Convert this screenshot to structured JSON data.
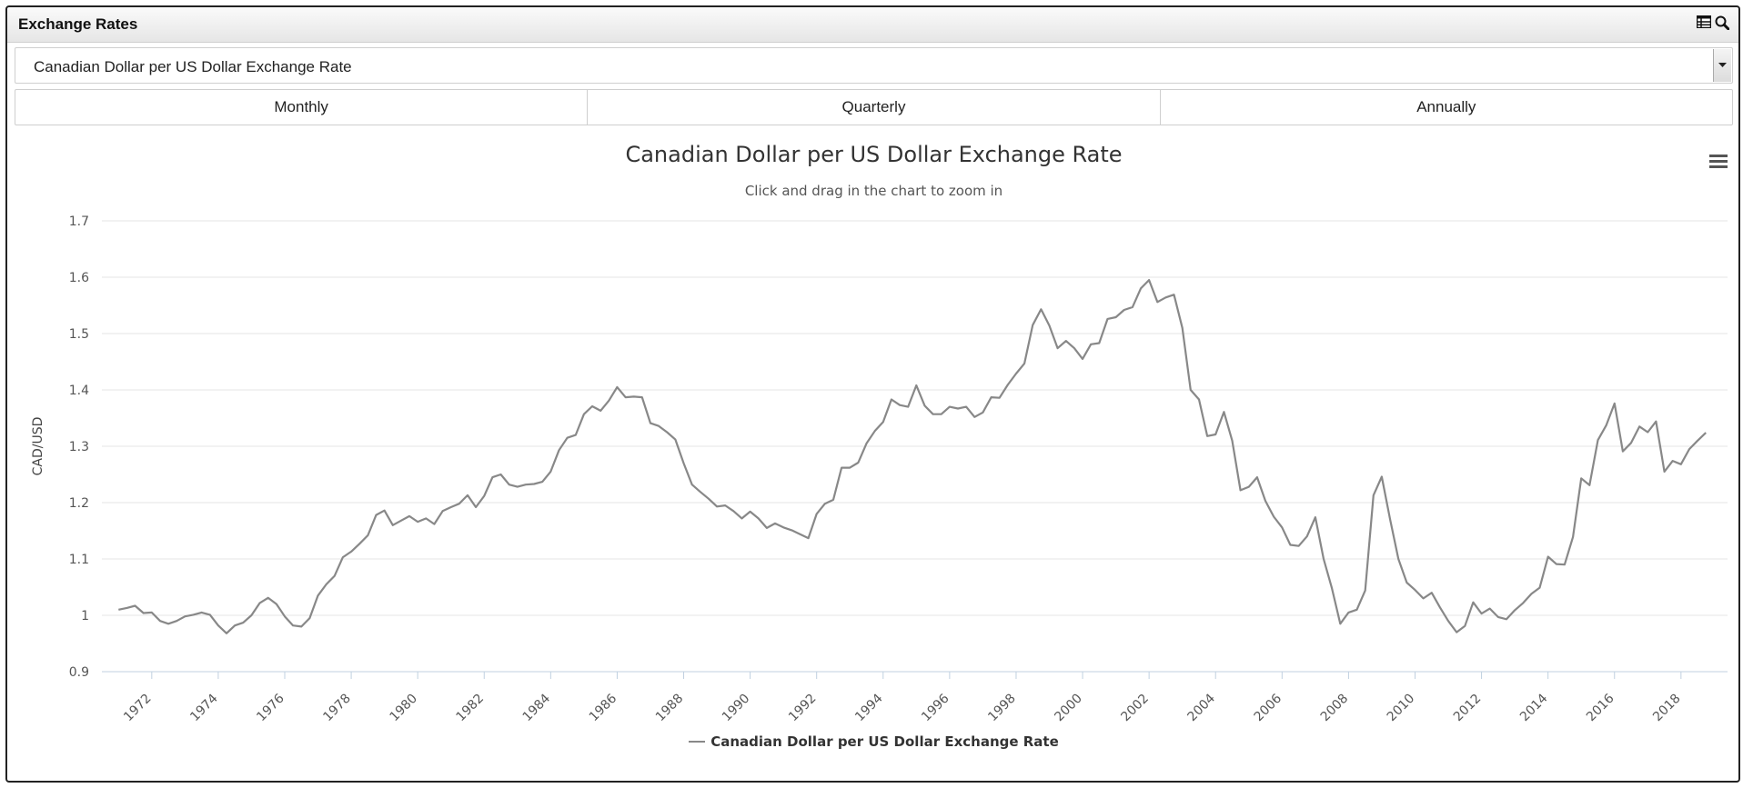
{
  "panel": {
    "title": "Exchange Rates",
    "icons": [
      "table-icon",
      "zoom-icon"
    ]
  },
  "selector": {
    "value": "Canadian Dollar per US Dollar Exchange Rate"
  },
  "frequency": {
    "buttons": [
      "Monthly",
      "Quarterly",
      "Annually"
    ]
  },
  "chart_data": {
    "type": "line",
    "title": "Canadian Dollar per US Dollar Exchange Rate",
    "subtitle": "Click and drag in the chart to zoom in",
    "xlabel": "",
    "ylabel": "CAD/USD",
    "ylim": [
      0.9,
      1.7
    ],
    "xlim": [
      1971.0,
      2018.9
    ],
    "yticks": [
      0.9,
      1,
      1.1,
      1.2,
      1.3,
      1.4,
      1.5,
      1.6,
      1.7
    ],
    "ytick_labels": [
      "0.9",
      "1",
      "1.1",
      "1.2",
      "1.3",
      "1.4",
      "1.5",
      "1.6",
      "1.7"
    ],
    "xticks": [
      1972,
      1974,
      1976,
      1978,
      1980,
      1982,
      1984,
      1986,
      1988,
      1990,
      1992,
      1994,
      1996,
      1998,
      2000,
      2002,
      2004,
      2006,
      2008,
      2010,
      2012,
      2014,
      2016,
      2018
    ],
    "xtick_labels": [
      "1972",
      "1974",
      "1976",
      "1978",
      "1980",
      "1982",
      "1984",
      "1986",
      "1988",
      "1990",
      "1992",
      "1994",
      "1996",
      "1998",
      "2000",
      "2002",
      "2004",
      "2006",
      "2008",
      "2010",
      "2012",
      "2014",
      "2016",
      "2018"
    ],
    "grid": true,
    "legend_position": "bottom-center",
    "series": [
      {
        "name": "Canadian Dollar per US Dollar Exchange Rate",
        "color": "#888888",
        "x": [
          1971.0,
          1971.25,
          1971.5,
          1971.75,
          1972.0,
          1972.25,
          1972.5,
          1972.75,
          1973.0,
          1973.25,
          1973.5,
          1973.75,
          1974.0,
          1974.25,
          1974.5,
          1974.75,
          1975.0,
          1975.25,
          1975.5,
          1975.75,
          1976.0,
          1976.25,
          1976.5,
          1976.75,
          1977.0,
          1977.25,
          1977.5,
          1977.75,
          1978.0,
          1978.25,
          1978.5,
          1978.75,
          1979.0,
          1979.25,
          1979.5,
          1979.75,
          1980.0,
          1980.25,
          1980.5,
          1980.75,
          1981.0,
          1981.25,
          1981.5,
          1981.75,
          1982.0,
          1982.25,
          1982.5,
          1982.75,
          1983.0,
          1983.25,
          1983.5,
          1983.75,
          1984.0,
          1984.25,
          1984.5,
          1984.75,
          1985.0,
          1985.25,
          1985.5,
          1985.75,
          1986.0,
          1986.25,
          1986.5,
          1986.75,
          1987.0,
          1987.25,
          1987.5,
          1987.75,
          1988.0,
          1988.25,
          1988.5,
          1988.75,
          1989.0,
          1989.25,
          1989.5,
          1989.75,
          1990.0,
          1990.25,
          1990.5,
          1990.75,
          1991.0,
          1991.25,
          1991.5,
          1991.75,
          1992.0,
          1992.25,
          1992.5,
          1992.75,
          1993.0,
          1993.25,
          1993.5,
          1993.75,
          1994.0,
          1994.25,
          1994.5,
          1994.75,
          1995.0,
          1995.25,
          1995.5,
          1995.75,
          1996.0,
          1996.25,
          1996.5,
          1996.75,
          1997.0,
          1997.25,
          1997.5,
          1997.75,
          1998.0,
          1998.25,
          1998.5,
          1998.75,
          1999.0,
          1999.25,
          1999.5,
          1999.75,
          2000.0,
          2000.25,
          2000.5,
          2000.75,
          2001.0,
          2001.25,
          2001.5,
          2001.75,
          2002.0,
          2002.25,
          2002.5,
          2002.75,
          2003.0,
          2003.25,
          2003.5,
          2003.75,
          2004.0,
          2004.25,
          2004.5,
          2004.75,
          2005.0,
          2005.25,
          2005.5,
          2005.75,
          2006.0,
          2006.25,
          2006.5,
          2006.75,
          2007.0,
          2007.25,
          2007.5,
          2007.75,
          2008.0,
          2008.25,
          2008.5,
          2008.75,
          2009.0,
          2009.25,
          2009.5,
          2009.75,
          2010.0,
          2010.25,
          2010.5,
          2010.75,
          2011.0,
          2011.25,
          2011.5,
          2011.75,
          2012.0,
          2012.25,
          2012.5,
          2012.75,
          2013.0,
          2013.25,
          2013.5,
          2013.75,
          2014.0,
          2014.25,
          2014.5,
          2014.75,
          2015.0,
          2015.25,
          2015.5,
          2015.75,
          2016.0,
          2016.25,
          2016.5,
          2016.75,
          2017.0,
          2017.25,
          2017.5,
          2017.75,
          2018.0,
          2018.25,
          2018.5,
          2018.75
        ],
        "y": [
          1.01,
          1.013,
          1.017,
          1.004,
          1.005,
          0.99,
          0.985,
          0.99,
          0.998,
          1.001,
          1.005,
          1.001,
          0.982,
          0.968,
          0.982,
          0.987,
          1.0,
          1.022,
          1.031,
          1.02,
          0.998,
          0.982,
          0.98,
          0.995,
          1.035,
          1.055,
          1.07,
          1.103,
          1.113,
          1.127,
          1.142,
          1.178,
          1.186,
          1.16,
          1.168,
          1.176,
          1.166,
          1.172,
          1.162,
          1.185,
          1.192,
          1.198,
          1.213,
          1.192,
          1.212,
          1.245,
          1.25,
          1.232,
          1.228,
          1.232,
          1.233,
          1.237,
          1.255,
          1.293,
          1.315,
          1.32,
          1.357,
          1.371,
          1.363,
          1.381,
          1.405,
          1.387,
          1.388,
          1.387,
          1.341,
          1.336,
          1.325,
          1.312,
          1.27,
          1.232,
          1.219,
          1.207,
          1.193,
          1.195,
          1.185,
          1.172,
          1.184,
          1.172,
          1.155,
          1.163,
          1.156,
          1.151,
          1.144,
          1.137,
          1.18,
          1.198,
          1.205,
          1.262,
          1.262,
          1.271,
          1.305,
          1.327,
          1.343,
          1.383,
          1.373,
          1.37,
          1.408,
          1.372,
          1.357,
          1.357,
          1.37,
          1.367,
          1.37,
          1.352,
          1.36,
          1.387,
          1.386,
          1.409,
          1.429,
          1.447,
          1.515,
          1.543,
          1.514,
          1.474,
          1.487,
          1.474,
          1.455,
          1.481,
          1.483,
          1.526,
          1.529,
          1.542,
          1.547,
          1.58,
          1.595,
          1.556,
          1.564,
          1.569,
          1.51,
          1.4,
          1.383,
          1.318,
          1.321,
          1.361,
          1.31,
          1.222,
          1.228,
          1.245,
          1.203,
          1.175,
          1.156,
          1.125,
          1.123,
          1.14,
          1.174,
          1.1,
          1.048,
          0.985,
          1.005,
          1.01,
          1.044,
          1.213,
          1.246,
          1.17,
          1.1,
          1.058,
          1.045,
          1.03,
          1.04,
          1.014,
          0.99,
          0.97,
          0.981,
          1.023,
          1.003,
          1.012,
          0.997,
          0.993,
          1.009,
          1.022,
          1.038,
          1.049,
          1.104,
          1.091,
          1.09,
          1.139,
          1.243,
          1.231,
          1.311,
          1.337,
          1.376,
          1.291,
          1.306,
          1.335,
          1.325,
          1.344,
          1.255,
          1.274,
          1.268,
          1.295,
          1.31,
          1.324
        ]
      }
    ]
  }
}
